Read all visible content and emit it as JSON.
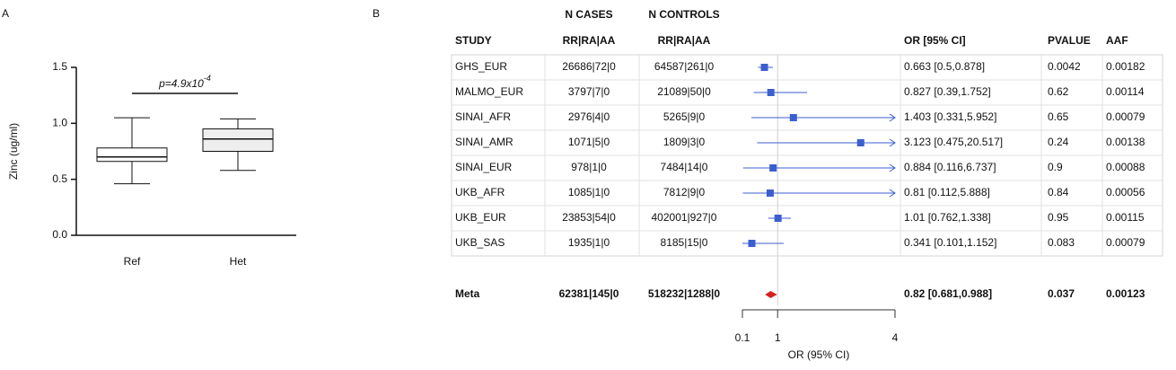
{
  "chart_data": [
    {
      "type": "box",
      "panel_label": "A",
      "ylabel": "Zinc (ug/ml)",
      "categories": [
        "Ref",
        "Het"
      ],
      "boxes": [
        {
          "min": 0.46,
          "q1": 0.66,
          "median": 0.7,
          "q3": 0.78,
          "max": 1.05
        },
        {
          "min": 0.58,
          "q1": 0.75,
          "median": 0.86,
          "q3": 0.95,
          "max": 1.04
        }
      ],
      "colors": [
        "#ffffff",
        "#eeeeee"
      ],
      "ylim": [
        0,
        1.5
      ],
      "yticks": [
        {
          "value": 0,
          "label": "0.0"
        },
        0.5,
        {
          "value": 1,
          "label": "1.0"
        },
        1.5
      ],
      "annotation": {
        "text": "p=4.9x10",
        "superscript": "-4"
      }
    },
    {
      "type": "forest",
      "panel_label": "B",
      "group_headers": {
        "cases": "N CASES",
        "controls": "N CONTROLS"
      },
      "columns": [
        "STUDY",
        "RR|RA|AA",
        "RR|RA|AA",
        "OR [95% CI]",
        "PVALUE",
        "AAF"
      ],
      "rows": [
        {
          "study": "GHS_EUR",
          "cases": "26686|72|0",
          "controls": "64587|261|0",
          "or_ci": "0.663 [0.5,0.878]",
          "pvalue": 0.0042,
          "aaf": 0.00182,
          "or": 0.663,
          "lo": 0.5,
          "hi": 0.878
        },
        {
          "study": "MALMO_EUR",
          "cases": "3797|7|0",
          "controls": "21089|50|0",
          "or_ci": "0.827 [0.39,1.752]",
          "pvalue": 0.62,
          "aaf": 0.00114,
          "or": 0.827,
          "lo": 0.39,
          "hi": 1.752
        },
        {
          "study": "SINAI_AFR",
          "cases": "2976|4|0",
          "controls": "5265|9|0",
          "or_ci": "1.403 [0.331,5.952]",
          "pvalue": 0.65,
          "aaf": 0.00079,
          "or": 1.403,
          "lo": 0.331,
          "hi": 5.952
        },
        {
          "study": "SINAI_AMR",
          "cases": "1071|5|0",
          "controls": "1809|3|0",
          "or_ci": "3.123 [0.475,20.517]",
          "pvalue": 0.24,
          "aaf": 0.00138,
          "or": 3.123,
          "lo": 0.475,
          "hi": 20.517
        },
        {
          "study": "SINAI_EUR",
          "cases": "978|1|0",
          "controls": "7484|14|0",
          "or_ci": "0.884 [0.116,6.737]",
          "pvalue": 0.9,
          "aaf": 0.00088,
          "or": 0.884,
          "lo": 0.116,
          "hi": 6.737
        },
        {
          "study": "UKB_AFR",
          "cases": "1085|1|0",
          "controls": "7812|9|0",
          "or_ci": "0.81 [0.112,5.888]",
          "pvalue": 0.84,
          "aaf": 0.00056,
          "or": 0.81,
          "lo": 0.112,
          "hi": 5.888
        },
        {
          "study": "UKB_EUR",
          "cases": "23853|54|0",
          "controls": "402001|927|0",
          "or_ci": "1.01 [0.762,1.338]",
          "pvalue": 0.95,
          "aaf": 0.00115,
          "or": 1.01,
          "lo": 0.762,
          "hi": 1.338
        },
        {
          "study": "UKB_SAS",
          "cases": "1935|1|0",
          "controls": "8185|15|0",
          "or_ci": "0.341 [0.101,1.152]",
          "pvalue": 0.083,
          "aaf": 0.00079,
          "or": 0.341,
          "lo": 0.101,
          "hi": 1.152
        }
      ],
      "meta": {
        "study": "Meta",
        "cases": "62381|145|0",
        "controls": "518232|1288|0",
        "or_ci": "0.82 [0.681,0.988]",
        "pvalue": 0.037,
        "aaf": 0.00123,
        "or": 0.82,
        "lo": 0.681,
        "hi": 0.988
      },
      "color": "#3b5fcf",
      "meta_color": "#d62020",
      "xlim": [
        0.1,
        4
      ],
      "xticks": [
        0.1,
        1,
        4
      ],
      "reference_line": 1,
      "xlabel": "OR (95% CI)"
    }
  ]
}
